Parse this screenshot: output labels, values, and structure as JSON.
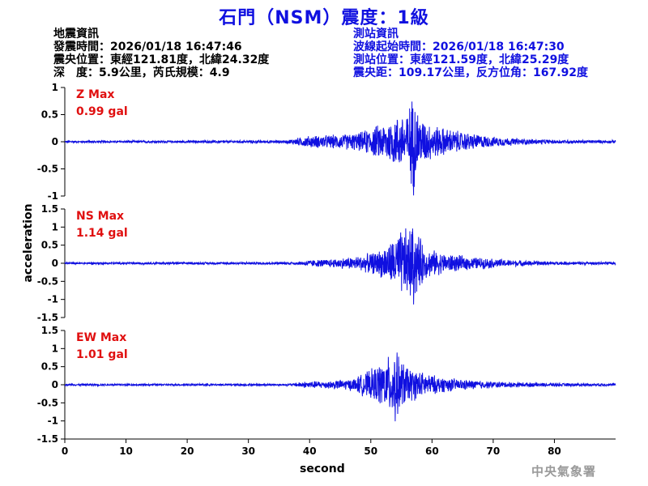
{
  "title": "石門（NSM）震度：1級",
  "quake_info": {
    "heading": "地震資訊",
    "origin_time": "發震時間：2026/01/18 16:47:46",
    "epicenter": "震央位置：東經121.81度，北緯24.32度",
    "depth_magnitude": "深　度：5.9公里，芮氏規模：4.9"
  },
  "station_info": {
    "heading": "測站資訊",
    "wave_start": "波線起始時間：2026/01/18 16:47:30",
    "location": "測站位置：東經121.59度，北緯25.29度",
    "distance_azimuth": "震央距：109.17公里，反方位角：167.92度"
  },
  "logo_text": "中央氣象署",
  "chart_data": {
    "type": "line",
    "xlabel": "second",
    "ylabel": "acceleration",
    "xlim": [
      0,
      90
    ],
    "xticks": [
      0,
      10,
      20,
      30,
      40,
      50,
      60,
      70,
      80
    ],
    "line_color": "#1010e0",
    "panels": [
      {
        "component": "Z",
        "max_label": "Z Max",
        "max_value": "0.99 gal",
        "ylim": [
          -1,
          1
        ],
        "yticks": [
          -1,
          -0.5,
          0,
          0.5,
          1
        ],
        "ytick_labels": [
          "-1",
          "-0.5",
          "0",
          "0.5",
          "1"
        ],
        "peak_time": 57,
        "peak_amp": 0.99,
        "onset": 38,
        "envelope": [
          [
            0,
            0.02
          ],
          [
            36,
            0.03
          ],
          [
            38,
            0.08
          ],
          [
            40,
            0.12
          ],
          [
            44,
            0.14
          ],
          [
            48,
            0.18
          ],
          [
            52,
            0.38
          ],
          [
            54,
            0.5
          ],
          [
            56,
            0.62
          ],
          [
            57,
            0.99
          ],
          [
            58,
            0.5
          ],
          [
            60,
            0.35
          ],
          [
            62,
            0.28
          ],
          [
            65,
            0.2
          ],
          [
            70,
            0.1
          ],
          [
            75,
            0.06
          ],
          [
            80,
            0.04
          ],
          [
            90,
            0.03
          ]
        ]
      },
      {
        "component": "NS",
        "max_label": "NS Max",
        "max_value": "1.14 gal",
        "ylim": [
          -1.5,
          1.5
        ],
        "yticks": [
          -1.5,
          -1,
          -0.5,
          0,
          0.5,
          1,
          1.5
        ],
        "ytick_labels": [
          "-1.5",
          "-1",
          "-0.5",
          "0",
          "0.5",
          "1",
          "1.5"
        ],
        "peak_time": 57,
        "peak_amp": 1.14,
        "onset": 39,
        "envelope": [
          [
            0,
            0.03
          ],
          [
            38,
            0.04
          ],
          [
            40,
            0.1
          ],
          [
            44,
            0.13
          ],
          [
            48,
            0.22
          ],
          [
            51,
            0.35
          ],
          [
            53,
            0.6
          ],
          [
            55,
            1.0
          ],
          [
            57,
            1.14
          ],
          [
            59,
            0.45
          ],
          [
            62,
            0.3
          ],
          [
            66,
            0.2
          ],
          [
            70,
            0.14
          ],
          [
            75,
            0.08
          ],
          [
            80,
            0.05
          ],
          [
            90,
            0.04
          ]
        ]
      },
      {
        "component": "EW",
        "max_label": "EW Max",
        "max_value": "1.01 gal",
        "ylim": [
          -1.5,
          1.5
        ],
        "yticks": [
          -1.5,
          -1,
          -0.5,
          0,
          0.5,
          1,
          1.5
        ],
        "ytick_labels": [
          "-1.5",
          "-1",
          "-0.5",
          "0",
          "0.5",
          "1",
          "1.5"
        ],
        "peak_time": 54,
        "peak_amp": 1.01,
        "onset": 38,
        "envelope": [
          [
            0,
            0.03
          ],
          [
            37,
            0.03
          ],
          [
            39,
            0.1
          ],
          [
            43,
            0.12
          ],
          [
            47,
            0.18
          ],
          [
            50,
            0.45
          ],
          [
            52,
            0.7
          ],
          [
            54,
            1.01
          ],
          [
            56,
            0.55
          ],
          [
            58,
            0.4
          ],
          [
            61,
            0.25
          ],
          [
            65,
            0.16
          ],
          [
            70,
            0.1
          ],
          [
            75,
            0.07
          ],
          [
            80,
            0.05
          ],
          [
            90,
            0.04
          ]
        ]
      }
    ]
  }
}
